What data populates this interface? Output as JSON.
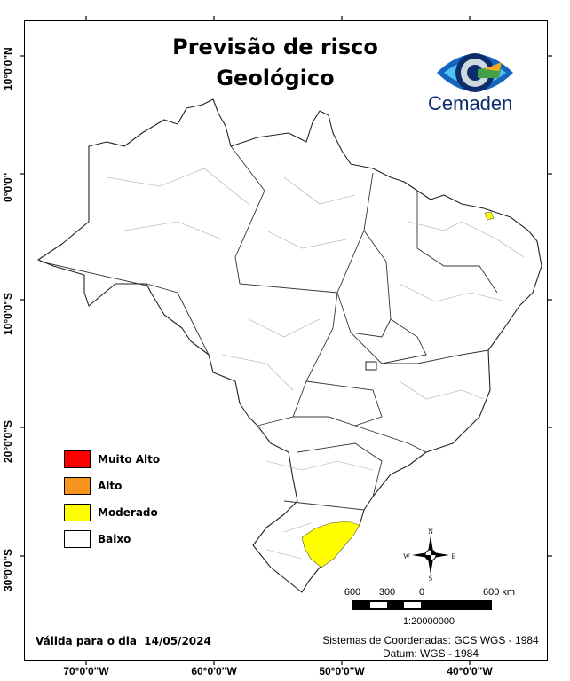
{
  "title": {
    "line1": "Previsão de risco",
    "line2": "Geológico"
  },
  "logo": {
    "text": "Cemaden",
    "icon": "cemaden-eye-logo"
  },
  "axes": {
    "x_ticks": [
      "70°0'0\"W",
      "60°0'0\"W",
      "50°0'0\"W",
      "40°0'0\"W"
    ],
    "y_ticks": [
      "10°0'0\"N",
      "0°0'0\"",
      "10°0'0\"S",
      "20°0'0\"S",
      "30°0'0\"S"
    ]
  },
  "legend": [
    {
      "label": "Muito Alto",
      "color": "#ff0000"
    },
    {
      "label": "Alto",
      "color": "#f7941d"
    },
    {
      "label": "Moderado",
      "color": "#ffff00"
    },
    {
      "label": "Baixo",
      "color": "#ffffff"
    }
  ],
  "map": {
    "region": "Brasil",
    "risk_areas": [
      {
        "area": "Rio Grande do Sul (leste)",
        "level": "Moderado"
      },
      {
        "area": "Ceará (norte)",
        "level": "Moderado"
      }
    ]
  },
  "compass": {
    "n": "N",
    "s": "S",
    "e": "E",
    "w": "W"
  },
  "scale_bar": {
    "labels": [
      "600",
      "300",
      "0",
      "600 km"
    ],
    "ratio": "1:20000000"
  },
  "footer": {
    "valid_date": "Válida para o dia  14/05/2024",
    "coord_system": "Sistemas de Coordenadas: GCS WGS - 1984",
    "datum": "Datum: WGS - 1984"
  }
}
